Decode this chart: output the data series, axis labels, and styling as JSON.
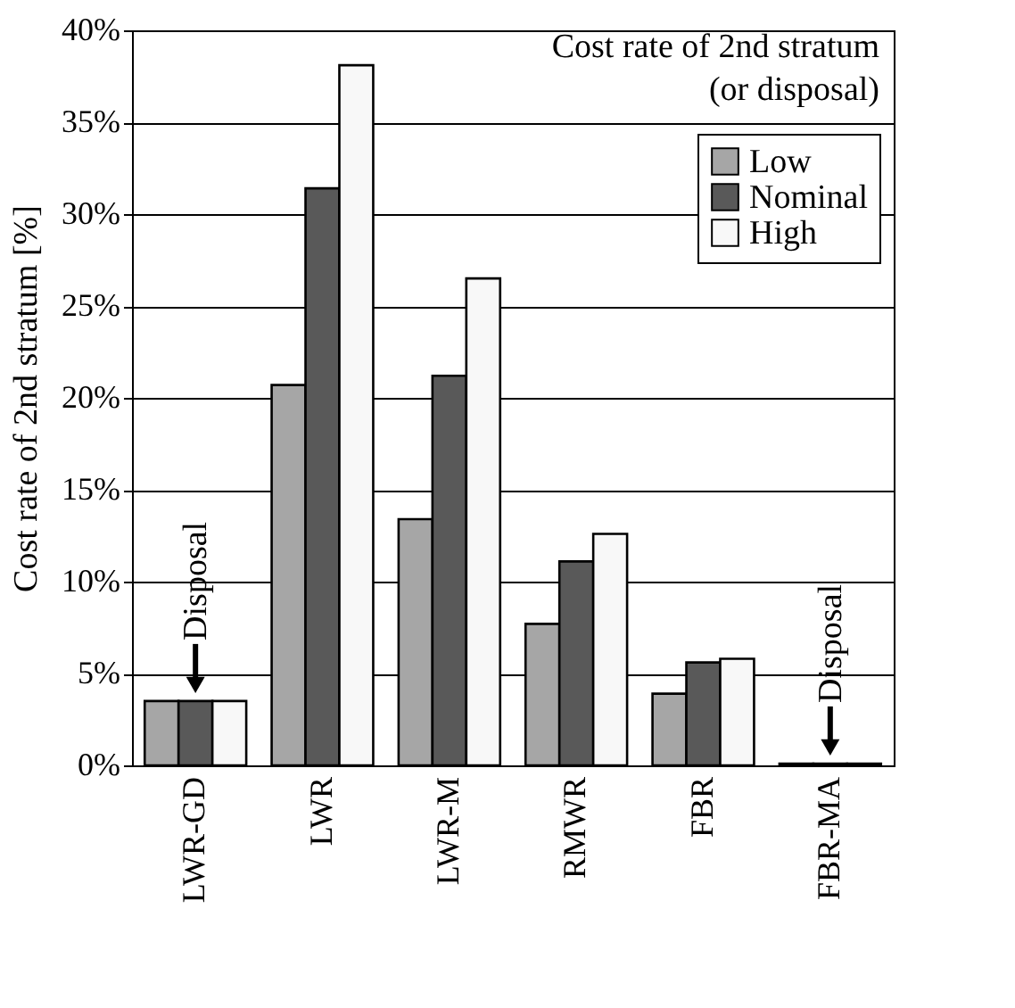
{
  "chart_data": {
    "type": "bar",
    "title": "Cost rate of 2nd stratum\n(or disposal)",
    "ylabel": "Cost rate of 2nd stratum [%]",
    "categories": [
      "LWR-GD",
      "LWR",
      "LWR-M",
      "RMWR",
      "FBR",
      "FBR-MA"
    ],
    "series": [
      {
        "name": "Low",
        "color": "#a6a6a6",
        "values": [
          3.5,
          20.7,
          13.4,
          7.7,
          3.9,
          0.1
        ]
      },
      {
        "name": "Nominal",
        "color": "#595959",
        "values": [
          3.5,
          31.4,
          21.2,
          11.1,
          5.6,
          0.1
        ]
      },
      {
        "name": "High",
        "color": "#f8f8f8",
        "values": [
          3.5,
          38.1,
          26.5,
          12.6,
          5.8,
          0.1
        ]
      }
    ],
    "ylim": [
      0,
      40
    ],
    "yticks": [
      {
        "value": 0,
        "label": "0%"
      },
      {
        "value": 5,
        "label": "5%"
      },
      {
        "value": 10,
        "label": "10%"
      },
      {
        "value": 15,
        "label": "15%"
      },
      {
        "value": 20,
        "label": "20%"
      },
      {
        "value": 25,
        "label": "25%"
      },
      {
        "value": 30,
        "label": "30%"
      },
      {
        "value": 35,
        "label": "35%"
      },
      {
        "value": 40,
        "label": "40%"
      }
    ],
    "grid": "y",
    "legend": "top right",
    "annotations": [
      {
        "text": "Disposal",
        "x": "LWR-GD",
        "y": 3.5
      },
      {
        "text": "Disposal",
        "x": "FBR-MA",
        "y": 0.1
      }
    ]
  }
}
